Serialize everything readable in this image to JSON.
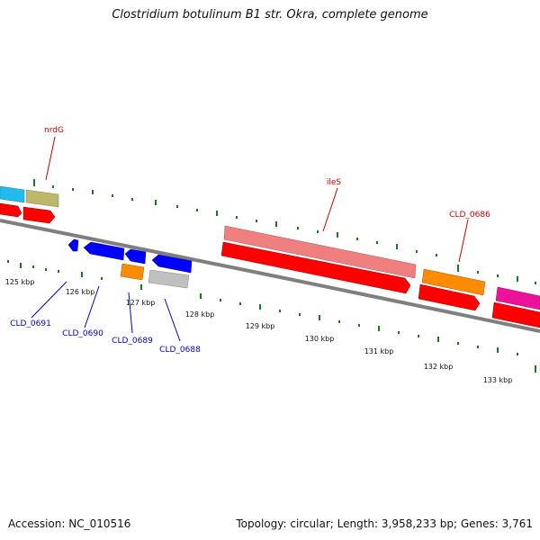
{
  "title": "Clostridium botulinum B1 str. Okra, complete genome",
  "footer": {
    "accession": "Accession: NC_010516",
    "summary": "Topology: circular; Length: 3,958,233 bp; Genes: 3,761"
  },
  "colors": {
    "backbone": "#7f7f7f",
    "tick": "#1a7a1a",
    "forward_label": "#cc0000",
    "reverse_label": "#0000bb",
    "cds_forward": "#ff0000",
    "cds_reverse": "#0000ff",
    "rrna": "#f08080",
    "trna": "#ff8c00",
    "misc": "#c0c0c0",
    "cyan_feature": "#22bbee",
    "khaki_feature": "#bdb76b",
    "magenta_feature": "#ee1199"
  },
  "ticks": [
    "125 kbp",
    "126 kbp",
    "127 kbp",
    "128 kbp",
    "129 kbp",
    "130 kbp",
    "131 kbp",
    "132 kbp",
    "133 kbp"
  ],
  "gene_labels": {
    "forward": [
      "nrdG",
      "ileS",
      "CLD_0686"
    ],
    "reverse": [
      "CLD_0691",
      "CLD_0690",
      "CLD_0689",
      "CLD_0688"
    ]
  }
}
